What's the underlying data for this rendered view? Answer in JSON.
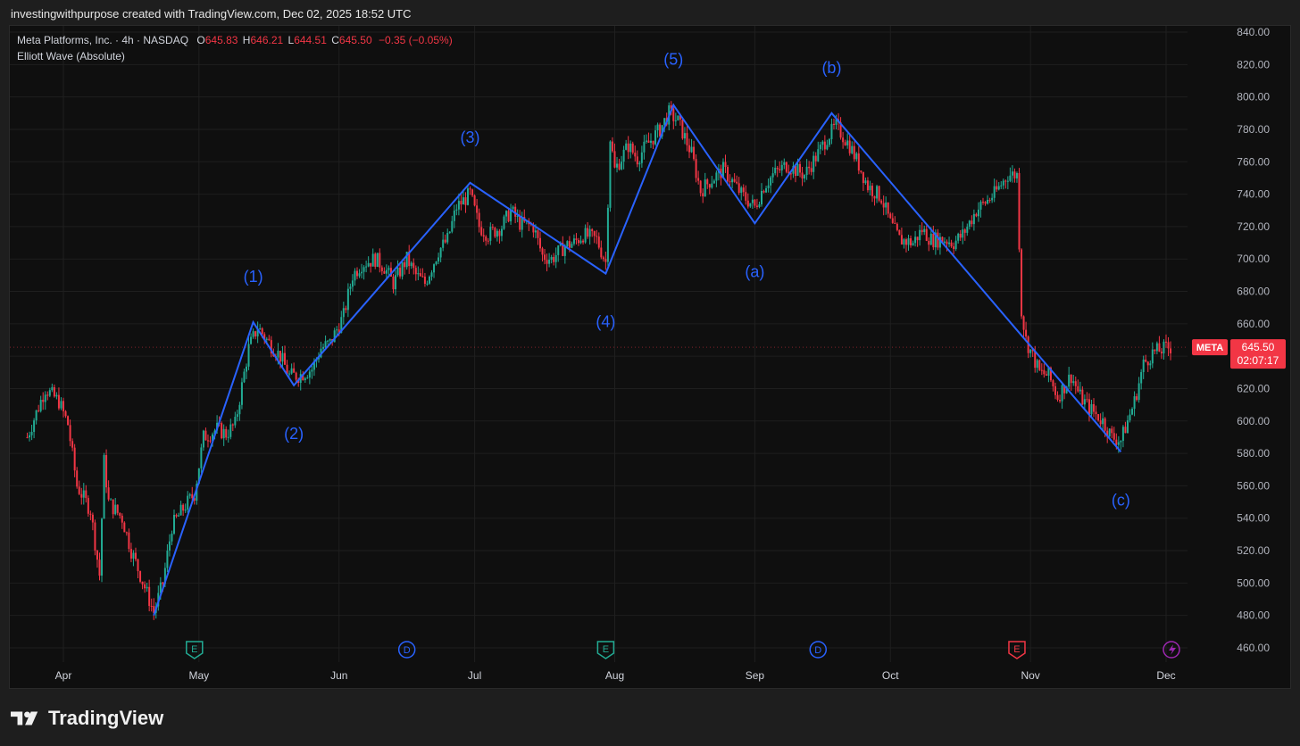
{
  "header": {
    "attribution": "investingwithpurpose created with TradingView.com, Dec 02, 2025 18:52 UTC"
  },
  "legend": {
    "symbol_line": "Meta Platforms, Inc. · 4h · NASDAQ",
    "o_label": "O",
    "o_value": "645.83",
    "h_label": "H",
    "h_value": "646.21",
    "l_label": "L",
    "l_value": "644.51",
    "c_label": "C",
    "c_value": "645.50",
    "change": "−0.35 (−0.05%)",
    "indicator": "Elliott Wave (Absolute)"
  },
  "price_tag": {
    "ticker": "META",
    "price": "645.50",
    "countdown": "02:07:17"
  },
  "footer": {
    "brand": "TradingView",
    "logo_icon": "tradingview-logo-icon"
  },
  "colors": {
    "up": "#22ab94",
    "down": "#f23645",
    "wave": "#2962ff",
    "background": "#0f0f0f",
    "grid": "#1f1f1f"
  },
  "chart_data": {
    "type": "candlestick",
    "symbol": "META",
    "timeframe": "4h",
    "ylim": [
      460,
      840
    ],
    "y_ticks": [
      "460.00",
      "480.00",
      "500.00",
      "520.00",
      "540.00",
      "560.00",
      "580.00",
      "600.00",
      "620.00",
      "640.00",
      "660.00",
      "680.00",
      "700.00",
      "720.00",
      "740.00",
      "760.00",
      "780.00",
      "800.00",
      "820.00",
      "840.00"
    ],
    "x_ticks": [
      {
        "label": "Apr",
        "date": "2025-04-01"
      },
      {
        "label": "May",
        "date": "2025-05-01"
      },
      {
        "label": "Jun",
        "date": "2025-06-01"
      },
      {
        "label": "Jul",
        "date": "2025-07-01"
      },
      {
        "label": "Aug",
        "date": "2025-08-01"
      },
      {
        "label": "Sep",
        "date": "2025-09-01"
      },
      {
        "label": "Oct",
        "date": "2025-10-01"
      },
      {
        "label": "Nov",
        "date": "2025-11-01"
      },
      {
        "label": "Dec",
        "date": "2025-12-01"
      }
    ],
    "grid": true,
    "price_path": [
      [
        "2025-03-24",
        590
      ],
      [
        "2025-03-26",
        605
      ],
      [
        "2025-03-28",
        620
      ],
      [
        "2025-03-31",
        612
      ],
      [
        "2025-04-02",
        598
      ],
      [
        "2025-04-04",
        560
      ],
      [
        "2025-04-07",
        545
      ],
      [
        "2025-04-09",
        505
      ],
      [
        "2025-04-10",
        575
      ],
      [
        "2025-04-11",
        550
      ],
      [
        "2025-04-14",
        540
      ],
      [
        "2025-04-16",
        520
      ],
      [
        "2025-04-18",
        505
      ],
      [
        "2025-04-21",
        482
      ],
      [
        "2025-04-23",
        500
      ],
      [
        "2025-04-25",
        535
      ],
      [
        "2025-04-28",
        548
      ],
      [
        "2025-04-30",
        555
      ],
      [
        "2025-05-02",
        590
      ],
      [
        "2025-05-05",
        595
      ],
      [
        "2025-05-07",
        592
      ],
      [
        "2025-05-09",
        598
      ],
      [
        "2025-05-12",
        645
      ],
      [
        "2025-05-14",
        658
      ],
      [
        "2025-05-16",
        650
      ],
      [
        "2025-05-19",
        640
      ],
      [
        "2025-05-21",
        628
      ],
      [
        "2025-05-23",
        628
      ],
      [
        "2025-05-26",
        632
      ],
      [
        "2025-05-28",
        645
      ],
      [
        "2025-05-30",
        648
      ],
      [
        "2025-06-02",
        665
      ],
      [
        "2025-06-04",
        690
      ],
      [
        "2025-06-06",
        697
      ],
      [
        "2025-06-09",
        700
      ],
      [
        "2025-06-11",
        695
      ],
      [
        "2025-06-13",
        685
      ],
      [
        "2025-06-16",
        700
      ],
      [
        "2025-06-18",
        690
      ],
      [
        "2025-06-20",
        685
      ],
      [
        "2025-06-23",
        705
      ],
      [
        "2025-06-25",
        712
      ],
      [
        "2025-06-27",
        732
      ],
      [
        "2025-06-30",
        740
      ],
      [
        "2025-07-02",
        720
      ],
      [
        "2025-07-04",
        715
      ],
      [
        "2025-07-07",
        720
      ],
      [
        "2025-07-09",
        730
      ],
      [
        "2025-07-11",
        722
      ],
      [
        "2025-07-14",
        720
      ],
      [
        "2025-07-16",
        702
      ],
      [
        "2025-07-18",
        700
      ],
      [
        "2025-07-21",
        708
      ],
      [
        "2025-07-23",
        710
      ],
      [
        "2025-07-25",
        715
      ],
      [
        "2025-07-28",
        712
      ],
      [
        "2025-07-30",
        698
      ],
      [
        "2025-07-31",
        775
      ],
      [
        "2025-08-01",
        755
      ],
      [
        "2025-08-04",
        770
      ],
      [
        "2025-08-06",
        762
      ],
      [
        "2025-08-08",
        770
      ],
      [
        "2025-08-11",
        780
      ],
      [
        "2025-08-13",
        790
      ],
      [
        "2025-08-15",
        785
      ],
      [
        "2025-08-18",
        765
      ],
      [
        "2025-08-20",
        742
      ],
      [
        "2025-08-22",
        748
      ],
      [
        "2025-08-25",
        755
      ],
      [
        "2025-08-27",
        748
      ],
      [
        "2025-08-29",
        740
      ],
      [
        "2025-09-01",
        732
      ],
      [
        "2025-09-03",
        745
      ],
      [
        "2025-09-05",
        752
      ],
      [
        "2025-09-08",
        758
      ],
      [
        "2025-09-10",
        755
      ],
      [
        "2025-09-12",
        752
      ],
      [
        "2025-09-15",
        765
      ],
      [
        "2025-09-17",
        775
      ],
      [
        "2025-09-19",
        782
      ],
      [
        "2025-09-22",
        770
      ],
      [
        "2025-09-24",
        758
      ],
      [
        "2025-09-26",
        745
      ],
      [
        "2025-09-29",
        738
      ],
      [
        "2025-10-01",
        722
      ],
      [
        "2025-10-03",
        712
      ],
      [
        "2025-10-06",
        710
      ],
      [
        "2025-10-08",
        718
      ],
      [
        "2025-10-10",
        712
      ],
      [
        "2025-10-13",
        712
      ],
      [
        "2025-10-15",
        710
      ],
      [
        "2025-10-17",
        715
      ],
      [
        "2025-10-20",
        730
      ],
      [
        "2025-10-22",
        735
      ],
      [
        "2025-10-24",
        740
      ],
      [
        "2025-10-27",
        752
      ],
      [
        "2025-10-29",
        752
      ],
      [
        "2025-10-30",
        668
      ],
      [
        "2025-10-31",
        650
      ],
      [
        "2025-11-03",
        630
      ],
      [
        "2025-11-05",
        628
      ],
      [
        "2025-11-07",
        615
      ],
      [
        "2025-11-10",
        628
      ],
      [
        "2025-11-12",
        615
      ],
      [
        "2025-11-14",
        608
      ],
      [
        "2025-11-17",
        600
      ],
      [
        "2025-11-19",
        590
      ],
      [
        "2025-11-21",
        588
      ],
      [
        "2025-11-24",
        612
      ],
      [
        "2025-11-26",
        635
      ],
      [
        "2025-11-28",
        642
      ],
      [
        "2025-12-01",
        645
      ],
      [
        "2025-12-02",
        645.5
      ]
    ],
    "elliott_wave": [
      {
        "label": "",
        "date": "2025-04-21",
        "value": 480
      },
      {
        "label": "(1)",
        "date": "2025-05-13",
        "value": 661
      },
      {
        "label": "(2)",
        "date": "2025-05-22",
        "value": 622
      },
      {
        "label": "(3)",
        "date": "2025-06-30",
        "value": 747
      },
      {
        "label": "(4)",
        "date": "2025-07-30",
        "value": 691
      },
      {
        "label": "(5)",
        "date": "2025-08-14",
        "value": 795
      },
      {
        "label": "(a)",
        "date": "2025-09-01",
        "value": 722
      },
      {
        "label": "(b)",
        "date": "2025-09-18",
        "value": 790
      },
      {
        "label": "(c)",
        "date": "2025-11-21",
        "value": 581
      }
    ],
    "events": [
      {
        "type": "earnings",
        "icon": "E",
        "date": "2025-04-30",
        "color": "#22ab94"
      },
      {
        "type": "dividend",
        "icon": "D",
        "date": "2025-06-16",
        "color": "#2962ff"
      },
      {
        "type": "earnings",
        "icon": "E",
        "date": "2025-07-30",
        "color": "#22ab94"
      },
      {
        "type": "dividend",
        "icon": "D",
        "date": "2025-09-15",
        "color": "#2962ff"
      },
      {
        "type": "earnings",
        "icon": "E",
        "date": "2025-10-29",
        "color": "#f23645"
      },
      {
        "type": "ideas",
        "icon": "lightning-icon",
        "date": "2025-12-01",
        "color": "#9c27b0"
      }
    ]
  }
}
